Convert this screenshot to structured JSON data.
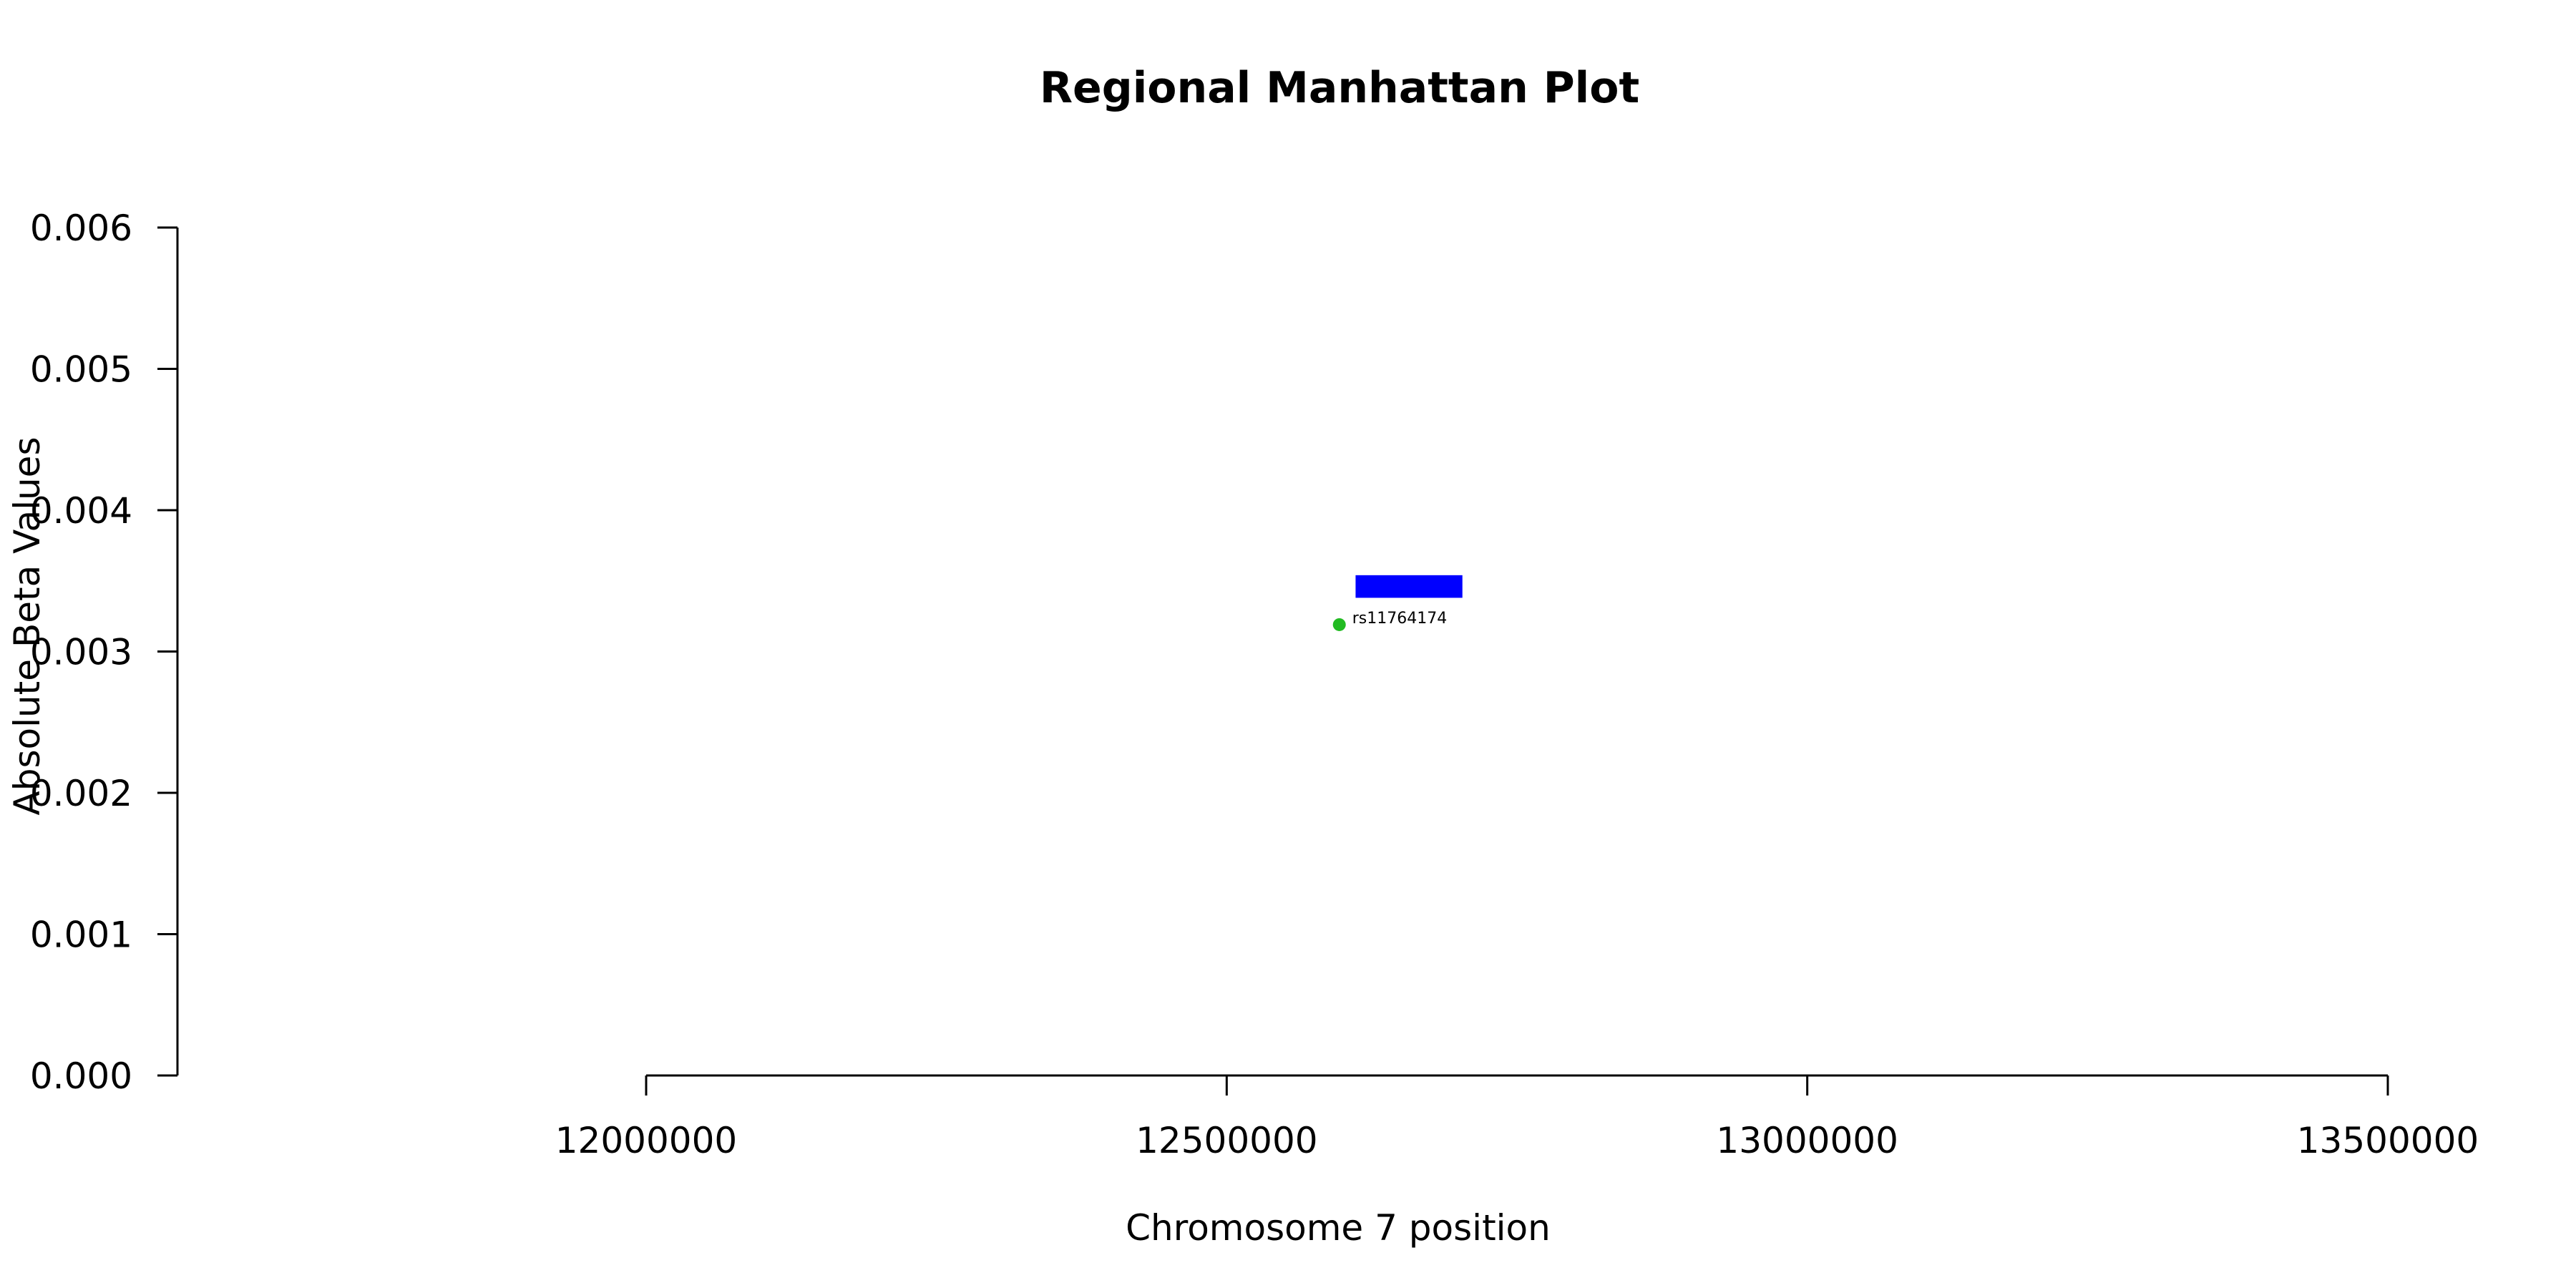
{
  "chart_data": {
    "type": "scatter",
    "title": "Regional Manhattan Plot",
    "xlabel": "Chromosome 7 position",
    "ylabel": "Absolute Beta Values",
    "xlim": [
      12000000,
      13500000
    ],
    "ylim": [
      0,
      0.006
    ],
    "x_ticks": [
      12000000,
      12500000,
      13000000,
      13500000
    ],
    "x_tick_labels": [
      "12000000",
      "12500000",
      "13000000",
      "13500000"
    ],
    "y_ticks": [
      0,
      0.001,
      0.002,
      0.003,
      0.004,
      0.005,
      0.006
    ],
    "y_tick_labels": [
      "0.000",
      "0.001",
      "0.002",
      "0.003",
      "0.004",
      "0.005",
      "0.006"
    ],
    "points": [
      {
        "label": "rs11764174",
        "x": 12597000,
        "y": 0.00319,
        "color": "#22bb22"
      }
    ],
    "gene_region": {
      "start": 12611000,
      "end": 12703000,
      "y_low": 0.00338,
      "y_high": 0.00354,
      "color": "#0000ff"
    },
    "grid": false,
    "legend": "none"
  }
}
